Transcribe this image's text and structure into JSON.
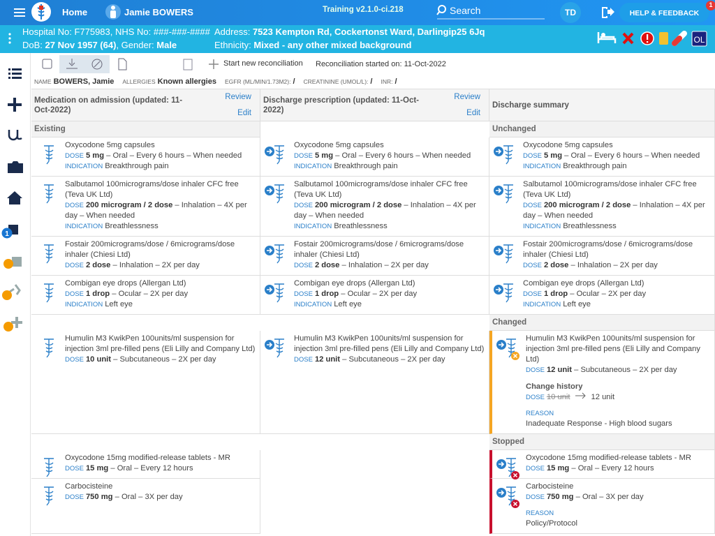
{
  "topbar": {
    "home": "Home",
    "patient": "Jamie BOWERS",
    "build": "Training v2.1.0-ci.218",
    "search": "Search",
    "user": "TD",
    "help": "HELP & FEEDBACK",
    "help_badge": "1"
  },
  "banner": {
    "hospital_label": "Hospital No:",
    "hospital_no": "F775983",
    "nhs_label": ", NHS No:",
    "nhs_no": "###-###-####",
    "address_label": "Address:",
    "address": "7523 Kempton Rd, Cockertonst Ward, Darlingip25 6Jq",
    "dob_label": "DoB:",
    "dob": "27 Nov 1957 (64)",
    "gender_label": ", Gender:",
    "gender": "Male",
    "ethnicity_label": "Ethnicity:",
    "ethnicity": "Mixed - any other mixed background",
    "badge": "OL"
  },
  "toolbar": {
    "new": "Start new reconciliation",
    "started": "Reconciliation started on: 11-Oct-2022"
  },
  "info": [
    {
      "label": "NAME",
      "value": "BOWERS, Jamie"
    },
    {
      "label": "ALLERGIES",
      "value": "Known allergies"
    },
    {
      "label": "EGFR (ML/MIN/1.73M2):",
      "value": "/"
    },
    {
      "label": "CREATININE (UMOL/L):",
      "value": "/"
    },
    {
      "label": "INR:",
      "value": "/"
    }
  ],
  "sidebar_badge": "1",
  "columns": [
    {
      "title": "Medication on admission (updated: 11-Oct-2022)",
      "review": "Review",
      "edit": "Edit"
    },
    {
      "title": "Discharge prescription (updated: 11-Oct-2022)",
      "review": "Review",
      "edit": "Edit"
    },
    {
      "title": "Discharge summary"
    }
  ],
  "rows": [
    [
      {
        "section": "Existing"
      },
      null,
      {
        "section": "Unchanged"
      }
    ],
    [
      {
        "name": "Oxycodone 5mg capsules",
        "dose_label": "DOSE",
        "dose": "5 mg",
        "details": "– Oral – Every 6 hours – When needed",
        "indication_label": "INDICATION",
        "indication": "Breakthrough pain"
      },
      {
        "name": "Oxycodone 5mg capsules",
        "dose_label": "DOSE",
        "dose": "5 mg",
        "details": "– Oral – Every 6 hours – When needed",
        "indication_label": "INDICATION",
        "indication": "Breakthrough pain"
      },
      {
        "name": "Oxycodone 5mg capsules",
        "dose_label": "DOSE",
        "dose": "5 mg",
        "details": "– Oral – Every 6 hours – When needed",
        "indication_label": "INDICATION",
        "indication": "Breakthrough pain"
      }
    ],
    [
      {
        "name": "Salbutamol 100micrograms/dose inhaler CFC free (Teva UK Ltd)",
        "dose_label": "DOSE",
        "dose": "200 microgram / 2 dose",
        "details": "– Inhalation – 4X per day – When needed",
        "indication_label": "INDICATION",
        "indication": "Breathlessness"
      },
      {
        "name": "Salbutamol 100micrograms/dose inhaler CFC free (Teva UK Ltd)",
        "dose_label": "DOSE",
        "dose": "200 microgram / 2 dose",
        "details": "– Inhalation – 4X per day – When needed",
        "indication_label": "INDICATION",
        "indication": "Breathlessness"
      },
      {
        "name": "Salbutamol 100micrograms/dose inhaler CFC free (Teva UK Ltd)",
        "dose_label": "DOSE",
        "dose": "200 microgram / 2 dose",
        "details": "– Inhalation – 4X per day – When needed",
        "indication_label": "INDICATION",
        "indication": "Breathlessness"
      }
    ],
    [
      {
        "name": "Fostair 200micrograms/dose / 6micrograms/dose inhaler (Chiesi Ltd)",
        "dose_label": "DOSE",
        "dose": "2 dose",
        "details": "– Inhalation – 2X per day"
      },
      {
        "name": "Fostair 200micrograms/dose / 6micrograms/dose inhaler (Chiesi Ltd)",
        "dose_label": "DOSE",
        "dose": "2 dose",
        "details": "– Inhalation – 2X per day"
      },
      {
        "name": "Fostair 200micrograms/dose / 6micrograms/dose inhaler (Chiesi Ltd)",
        "dose_label": "DOSE",
        "dose": "2 dose",
        "details": "– Inhalation – 2X per day"
      }
    ],
    [
      {
        "name": "Combigan eye drops (Allergan Ltd)",
        "dose_label": "DOSE",
        "dose": "1 drop",
        "details": "– Ocular – 2X per day",
        "indication_label": "INDICATION",
        "indication": "Left eye"
      },
      {
        "name": "Combigan eye drops (Allergan Ltd)",
        "dose_label": "DOSE",
        "dose": "1 drop",
        "details": "– Ocular – 2X per day",
        "indication_label": "INDICATION",
        "indication": "Left eye"
      },
      {
        "name": "Combigan eye drops (Allergan Ltd)",
        "dose_label": "DOSE",
        "dose": "1 drop",
        "details": "– Ocular – 2X per day",
        "indication_label": "INDICATION",
        "indication": "Left eye"
      }
    ],
    [
      null,
      null,
      {
        "section": "Changed"
      }
    ],
    [
      {
        "name": "Humulin M3 KwikPen 100units/ml suspension for injection 3ml pre-filled pens (Eli Lilly and Company Ltd)",
        "dose_label": "DOSE",
        "dose": "10 unit",
        "details": "– Subcutaneous – 2X per day"
      },
      {
        "name": "Humulin M3 KwikPen 100units/ml suspension for injection 3ml pre-filled pens (Eli Lilly and Company Ltd)",
        "dose_label": "DOSE",
        "dose": "12 unit",
        "details": "– Subcutaneous – 2X per day"
      },
      {
        "name": "Humulin M3 KwikPen 100units/ml suspension for injection 3ml pre-filled pens (Eli Lilly and Company Ltd)",
        "dose_label": "DOSE",
        "dose": "12 unit",
        "details": "– Subcutaneous – 2X per day",
        "accent": "#f5a623",
        "history": {
          "title": "Change history",
          "label": "DOSE",
          "from": "10 unit",
          "to": "12 unit"
        },
        "reason_label": "REASON",
        "reason": "Inadequate Response - High blood sugars"
      }
    ],
    [
      null,
      null,
      {
        "section": "Stopped"
      }
    ],
    [
      {
        "name": "Oxycodone 15mg modified-release tablets - MR",
        "dose_label": "DOSE",
        "dose": "15 mg",
        "details": "– Oral – Every 12 hours"
      },
      null,
      {
        "name": "Oxycodone 15mg modified-release tablets - MR",
        "dose_label": "DOSE",
        "dose": "15 mg",
        "details": "– Oral – Every 12 hours",
        "accent": "#c8102e"
      }
    ],
    [
      {
        "name": "Carbocisteine",
        "dose_label": "DOSE",
        "dose": "750 mg",
        "details": "– Oral – 3X per day"
      },
      null,
      {
        "name": "Carbocisteine",
        "dose_label": "DOSE",
        "dose": "750 mg",
        "details": "– Oral – 3X per day",
        "accent": "#c8102e",
        "reason_label": "REASON",
        "reason": "Policy/Protocol"
      }
    ]
  ]
}
